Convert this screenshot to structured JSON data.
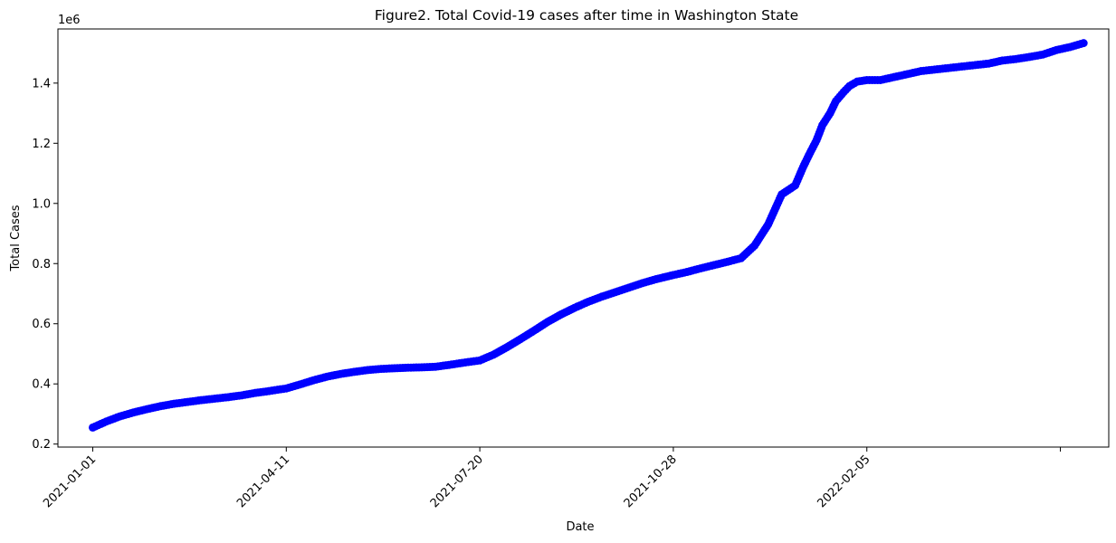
{
  "chart_data": {
    "type": "line",
    "title": "Figure2. Total Covid-19 cases after time in Washington State",
    "xlabel": "Date",
    "ylabel": "Total Cases",
    "y_scale_label": "1e6",
    "x_tick_labels": [
      "2021-01-01",
      "2021-04-11",
      "2021-07-20",
      "2021-10-28",
      "2022-02-05",
      ""
    ],
    "y_ticks": [
      0.2,
      0.4,
      0.6,
      0.8,
      1.0,
      1.2,
      1.4
    ],
    "y_tick_labels": [
      "0.2",
      "0.4",
      "0.6",
      "0.8",
      "1.0",
      "1.2",
      "1.4"
    ],
    "x_range": [
      "2020-12-14",
      "2022-06-10"
    ],
    "ylim": [
      0.19,
      1.58
    ],
    "grid": false,
    "marker": "circle",
    "color": "#0000ff",
    "series": [
      {
        "x": [
          "2021-01-01",
          "2021-01-08",
          "2021-01-15",
          "2021-01-22",
          "2021-01-29",
          "2021-02-05",
          "2021-02-12",
          "2021-02-19",
          "2021-02-26",
          "2021-03-05",
          "2021-03-12",
          "2021-03-19",
          "2021-03-26",
          "2021-04-02",
          "2021-04-11",
          "2021-04-18",
          "2021-04-25",
          "2021-05-02",
          "2021-05-09",
          "2021-05-16",
          "2021-05-23",
          "2021-05-30",
          "2021-06-06",
          "2021-06-13",
          "2021-06-20",
          "2021-06-27",
          "2021-07-04",
          "2021-07-11",
          "2021-07-20",
          "2021-07-27",
          "2021-08-03",
          "2021-08-10",
          "2021-08-17",
          "2021-08-24",
          "2021-08-31",
          "2021-09-07",
          "2021-09-14",
          "2021-09-21",
          "2021-09-28",
          "2021-10-05",
          "2021-10-12",
          "2021-10-19",
          "2021-10-28",
          "2021-11-04",
          "2021-11-11",
          "2021-11-18",
          "2021-11-25",
          "2021-12-02",
          "2021-12-09",
          "2021-12-16",
          "2021-12-23",
          "2021-12-30",
          "2022-01-03",
          "2022-01-06",
          "2022-01-10",
          "2022-01-13",
          "2022-01-17",
          "2022-01-20",
          "2022-01-24",
          "2022-01-27",
          "2022-01-31",
          "2022-02-05",
          "2022-02-12",
          "2022-02-19",
          "2022-02-26",
          "2022-03-05",
          "2022-03-12",
          "2022-03-19",
          "2022-03-26",
          "2022-04-02",
          "2022-04-09",
          "2022-04-16",
          "2022-04-23",
          "2022-04-30",
          "2022-05-07",
          "2022-05-14",
          "2022-05-21",
          "2022-05-28"
        ],
        "values": [
          0.255,
          0.275,
          0.292,
          0.305,
          0.316,
          0.326,
          0.334,
          0.34,
          0.346,
          0.351,
          0.356,
          0.362,
          0.37,
          0.376,
          0.385,
          0.398,
          0.412,
          0.424,
          0.433,
          0.44,
          0.446,
          0.45,
          0.452,
          0.454,
          0.455,
          0.457,
          0.463,
          0.47,
          0.478,
          0.497,
          0.522,
          0.549,
          0.577,
          0.606,
          0.631,
          0.653,
          0.673,
          0.69,
          0.705,
          0.72,
          0.735,
          0.748,
          0.762,
          0.772,
          0.784,
          0.795,
          0.806,
          0.818,
          0.86,
          0.93,
          1.03,
          1.06,
          1.12,
          1.16,
          1.21,
          1.26,
          1.3,
          1.34,
          1.37,
          1.39,
          1.405,
          1.41,
          1.41,
          1.42,
          1.43,
          1.44,
          1.445,
          1.45,
          1.455,
          1.46,
          1.465,
          1.475,
          1.48,
          1.487,
          1.495,
          1.51,
          1.52,
          1.533
        ]
      }
    ]
  }
}
